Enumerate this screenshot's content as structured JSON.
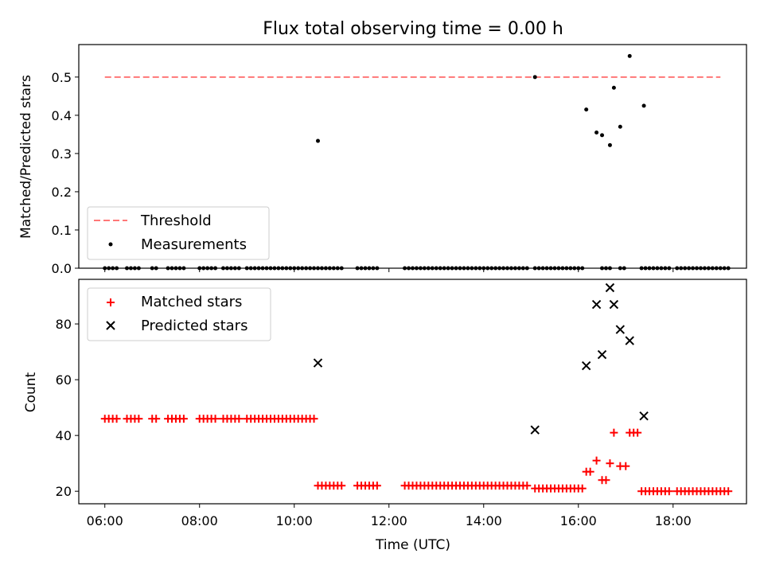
{
  "chart_data": [
    {
      "type": "scatter",
      "title": "Flux total observing time = 0.00 h",
      "xlabel": "",
      "ylabel": "Matched/Predicted stars",
      "xlim_hours": [
        5.45,
        19.55
      ],
      "ylim": [
        0,
        0.585
      ],
      "yticks": [
        0.0,
        0.1,
        0.2,
        0.3,
        0.4,
        0.5
      ],
      "ytick_labels": [
        "0.0",
        "0.1",
        "0.2",
        "0.3",
        "0.4",
        "0.5"
      ],
      "threshold": {
        "name": "Threshold",
        "value": 0.5,
        "x_range": [
          "06:00",
          "19:00"
        ],
        "color": "#ff7777"
      },
      "legend": {
        "placement": "lower-left",
        "entries": [
          "Threshold",
          "Measurements"
        ]
      },
      "series": [
        {
          "name": "Measurements",
          "color": "#000000",
          "x": [
            "10:30",
            "15:05",
            "16:10",
            "16:23",
            "16:30",
            "16:40",
            "16:45",
            "16:53",
            "17:05",
            "17:23"
          ],
          "y": [
            0.333,
            0.5,
            0.415,
            0.355,
            0.348,
            0.322,
            0.472,
            0.37,
            0.555,
            0.425
          ]
        },
        {
          "name": "Measurements (zero)",
          "color": "#000000",
          "x_ranges": [
            [
              "06:00",
              "06:15"
            ],
            [
              "06:28",
              "06:45"
            ],
            [
              "07:00",
              "07:05"
            ],
            [
              "07:20",
              "07:40"
            ],
            [
              "08:00",
              "08:20"
            ],
            [
              "08:30",
              "08:50"
            ],
            [
              "09:00",
              "10:25"
            ],
            [
              "10:30",
              "11:00"
            ],
            [
              "11:20",
              "11:45"
            ],
            [
              "12:20",
              "14:55"
            ],
            [
              "15:05",
              "16:05"
            ],
            [
              "16:30",
              "16:40"
            ],
            [
              "16:53",
              "17:00"
            ],
            [
              "17:20",
              "17:55"
            ],
            [
              "18:05",
              "19:10"
            ]
          ],
          "y": 0
        }
      ]
    },
    {
      "type": "scatter",
      "title": "",
      "xlabel": "Time (UTC)",
      "ylabel": "Count",
      "xlim_hours": [
        5.45,
        19.55
      ],
      "ylim": [
        15.5,
        96
      ],
      "yticks": [
        20,
        40,
        60,
        80
      ],
      "ytick_labels": [
        "20",
        "40",
        "60",
        "80"
      ],
      "xticks": [
        "06:00",
        "08:00",
        "10:00",
        "12:00",
        "14:00",
        "16:00",
        "18:00"
      ],
      "legend": {
        "placement": "upper-left",
        "entries": [
          "Matched stars",
          "Predicted stars"
        ]
      },
      "series": [
        {
          "name": "Matched stars",
          "color": "#ff0000",
          "marker": "plus",
          "x_ranges": [
            [
              "06:00",
              "06:15",
              46
            ],
            [
              "06:28",
              "06:45",
              46
            ],
            [
              "07:00",
              "07:05",
              46
            ],
            [
              "07:20",
              "07:40",
              46
            ],
            [
              "08:00",
              "08:20",
              46
            ],
            [
              "08:30",
              "08:50",
              46
            ],
            [
              "09:00",
              "10:25",
              46
            ],
            [
              "10:30",
              "11:00",
              22
            ],
            [
              "11:20",
              "11:45",
              22
            ],
            [
              "12:20",
              "14:55",
              22
            ],
            [
              "15:05",
              "16:05",
              21
            ]
          ],
          "x": [
            "16:10",
            "16:15",
            "16:23",
            "16:30",
            "16:35",
            "16:40",
            "16:45",
            "16:53",
            "17:00",
            "17:05",
            "17:10",
            "17:15"
          ],
          "y": [
            27,
            27,
            31,
            24,
            24,
            30,
            41,
            29,
            29,
            41,
            41,
            41
          ],
          "x_ranges_tail": [
            [
              "17:20",
              "17:55",
              20
            ],
            [
              "18:05",
              "19:10",
              20
            ]
          ]
        },
        {
          "name": "Predicted stars",
          "color": "#000000",
          "marker": "x",
          "x": [
            "10:30",
            "15:05",
            "16:10",
            "16:23",
            "16:30",
            "16:40",
            "16:45",
            "16:53",
            "17:05",
            "17:23"
          ],
          "y": [
            66,
            42,
            65,
            87,
            69,
            93,
            87,
            78,
            74,
            47
          ]
        }
      ]
    }
  ]
}
